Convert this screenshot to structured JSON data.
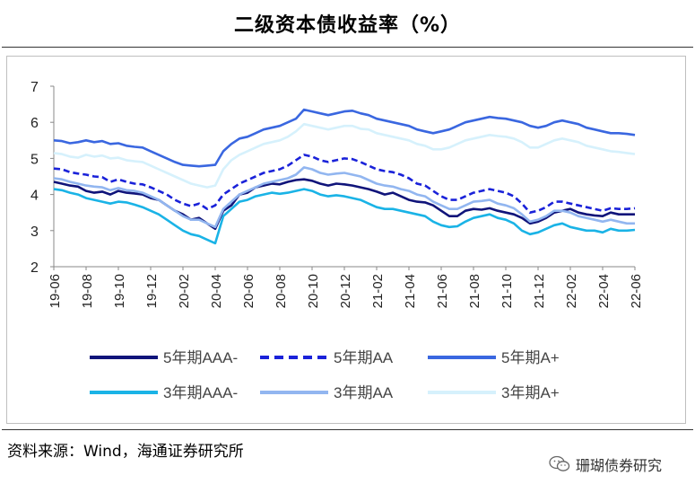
{
  "title": "二级资本债收益率（%）",
  "source": "资料来源：Wind，海通证券研究所",
  "watermark": "珊瑚债券研究",
  "chart_data": {
    "type": "line",
    "title": "二级资本债收益率（%）",
    "xlabel": "",
    "ylabel": "",
    "ylim": [
      2,
      7
    ],
    "yticks": [
      2,
      3,
      4,
      5,
      6,
      7
    ],
    "grid": false,
    "legend_position": "bottom",
    "categories": [
      "19-06",
      "19-08",
      "19-10",
      "19-12",
      "20-02",
      "20-04",
      "20-06",
      "20-08",
      "20-10",
      "20-12",
      "21-02",
      "21-04",
      "21-06",
      "21-08",
      "21-10",
      "21-12",
      "22-02",
      "22-04",
      "22-06"
    ],
    "x": [
      0,
      0.5,
      1,
      1.5,
      2,
      2.5,
      3,
      3.5,
      4,
      4.5,
      5,
      5.5,
      6,
      6.5,
      7,
      7.5,
      8,
      8.5,
      9,
      9.5,
      10,
      10.5,
      11,
      11.5,
      12,
      12.5,
      13,
      13.5,
      14,
      14.5,
      15,
      15.5,
      16,
      16.5,
      17,
      17.5,
      18,
      18.5,
      19,
      19.5,
      20,
      20.5,
      21,
      21.5,
      22,
      22.5,
      23,
      23.5,
      24,
      24.5,
      25,
      25.5,
      26,
      26.5,
      27,
      27.5,
      28,
      28.5,
      29,
      29.5,
      30,
      30.5,
      31,
      31.5,
      32,
      32.5,
      33,
      33.5,
      34,
      34.5,
      35,
      35.5,
      36
    ],
    "series": [
      {
        "name": "5年期AAA-",
        "color": "#10147a",
        "dash": "solid",
        "values": [
          4.35,
          4.3,
          4.25,
          4.22,
          4.1,
          4.05,
          4.08,
          4.0,
          4.1,
          4.05,
          4.03,
          4.0,
          3.9,
          3.85,
          3.7,
          3.55,
          3.45,
          3.3,
          3.35,
          3.2,
          3.05,
          3.55,
          3.7,
          4.0,
          4.05,
          4.2,
          4.25,
          4.3,
          4.28,
          4.35,
          4.4,
          4.42,
          4.38,
          4.3,
          4.25,
          4.3,
          4.28,
          4.25,
          4.2,
          4.15,
          4.08,
          4.0,
          4.05,
          3.95,
          3.85,
          3.8,
          3.78,
          3.7,
          3.55,
          3.4,
          3.4,
          3.55,
          3.6,
          3.58,
          3.62,
          3.55,
          3.5,
          3.45,
          3.35,
          3.2,
          3.25,
          3.35,
          3.5,
          3.55,
          3.6,
          3.5,
          3.45,
          3.42,
          3.4,
          3.5,
          3.45,
          3.45,
          3.45
        ]
      },
      {
        "name": "5年期AA",
        "color": "#1a22d9",
        "dash": "dashed",
        "values": [
          4.72,
          4.7,
          4.62,
          4.58,
          4.55,
          4.5,
          4.48,
          4.35,
          4.42,
          4.35,
          4.3,
          4.28,
          4.2,
          4.1,
          4.0,
          3.85,
          3.75,
          3.68,
          3.75,
          3.6,
          3.7,
          4.0,
          4.15,
          4.3,
          4.4,
          4.5,
          4.6,
          4.65,
          4.7,
          4.8,
          4.95,
          5.1,
          5.05,
          4.95,
          4.9,
          4.95,
          5.0,
          4.98,
          4.9,
          4.8,
          4.7,
          4.65,
          4.62,
          4.55,
          4.45,
          4.3,
          4.25,
          4.1,
          3.95,
          3.85,
          3.85,
          3.95,
          4.05,
          4.1,
          4.15,
          4.1,
          4.05,
          3.95,
          3.75,
          3.5,
          3.55,
          3.65,
          3.8,
          3.8,
          3.75,
          3.7,
          3.65,
          3.6,
          3.55,
          3.62,
          3.6,
          3.6,
          3.62
        ]
      },
      {
        "name": "5年期A+",
        "color": "#3a67e0",
        "dash": "solid",
        "values": [
          5.5,
          5.48,
          5.42,
          5.45,
          5.5,
          5.45,
          5.48,
          5.4,
          5.42,
          5.35,
          5.32,
          5.3,
          5.2,
          5.1,
          5.0,
          4.9,
          4.82,
          4.8,
          4.78,
          4.8,
          4.82,
          5.2,
          5.4,
          5.55,
          5.6,
          5.7,
          5.8,
          5.85,
          5.9,
          6.0,
          6.1,
          6.35,
          6.3,
          6.25,
          6.2,
          6.25,
          6.3,
          6.32,
          6.25,
          6.2,
          6.1,
          6.05,
          6.0,
          5.95,
          5.9,
          5.8,
          5.75,
          5.7,
          5.75,
          5.8,
          5.9,
          6.0,
          6.05,
          6.1,
          6.15,
          6.12,
          6.1,
          6.05,
          6.0,
          5.9,
          5.85,
          5.9,
          6.0,
          6.05,
          6.0,
          5.95,
          5.85,
          5.8,
          5.75,
          5.7,
          5.7,
          5.68,
          5.65
        ]
      },
      {
        "name": "3年期AAA-",
        "color": "#1ab3e6",
        "dash": "solid",
        "values": [
          4.15,
          4.12,
          4.05,
          4.0,
          3.9,
          3.85,
          3.8,
          3.75,
          3.8,
          3.78,
          3.72,
          3.65,
          3.55,
          3.45,
          3.3,
          3.15,
          3.0,
          2.9,
          2.85,
          2.75,
          2.65,
          3.4,
          3.6,
          3.8,
          3.85,
          3.95,
          4.0,
          4.05,
          4.02,
          4.05,
          4.1,
          4.15,
          4.1,
          4.0,
          3.95,
          3.98,
          3.95,
          3.9,
          3.85,
          3.75,
          3.65,
          3.6,
          3.6,
          3.55,
          3.5,
          3.45,
          3.4,
          3.25,
          3.15,
          3.1,
          3.12,
          3.25,
          3.35,
          3.4,
          3.45,
          3.35,
          3.3,
          3.2,
          3.0,
          2.9,
          2.95,
          3.05,
          3.15,
          3.2,
          3.1,
          3.05,
          3.0,
          3.0,
          2.95,
          3.05,
          3.0,
          3.0,
          3.02
        ]
      },
      {
        "name": "3年期AA",
        "color": "#92b6f0",
        "dash": "solid",
        "values": [
          4.45,
          4.42,
          4.35,
          4.3,
          4.25,
          4.22,
          4.2,
          4.12,
          4.18,
          4.12,
          4.1,
          4.05,
          3.95,
          3.85,
          3.7,
          3.55,
          3.4,
          3.3,
          3.3,
          3.2,
          3.1,
          3.6,
          3.8,
          4.0,
          4.1,
          4.2,
          4.3,
          4.35,
          4.4,
          4.45,
          4.55,
          4.75,
          4.7,
          4.6,
          4.55,
          4.58,
          4.6,
          4.55,
          4.5,
          4.4,
          4.3,
          4.25,
          4.22,
          4.15,
          4.1,
          4.0,
          3.95,
          3.8,
          3.7,
          3.6,
          3.6,
          3.7,
          3.8,
          3.82,
          3.85,
          3.75,
          3.7,
          3.62,
          3.45,
          3.25,
          3.3,
          3.4,
          3.55,
          3.55,
          3.5,
          3.4,
          3.35,
          3.3,
          3.25,
          3.3,
          3.25,
          3.2,
          3.2
        ]
      },
      {
        "name": "3年期A+",
        "color": "#d6f1fc",
        "dash": "solid",
        "values": [
          5.15,
          5.12,
          5.05,
          5.02,
          5.1,
          5.05,
          5.08,
          5.0,
          5.02,
          4.95,
          4.92,
          4.9,
          4.8,
          4.7,
          4.6,
          4.5,
          4.4,
          4.3,
          4.25,
          4.2,
          4.25,
          4.7,
          4.95,
          5.1,
          5.2,
          5.3,
          5.4,
          5.45,
          5.5,
          5.6,
          5.75,
          5.95,
          5.9,
          5.85,
          5.8,
          5.85,
          5.9,
          5.9,
          5.82,
          5.8,
          5.7,
          5.65,
          5.6,
          5.55,
          5.5,
          5.4,
          5.35,
          5.25,
          5.25,
          5.3,
          5.4,
          5.5,
          5.55,
          5.6,
          5.65,
          5.62,
          5.6,
          5.55,
          5.45,
          5.3,
          5.3,
          5.4,
          5.5,
          5.55,
          5.5,
          5.45,
          5.35,
          5.3,
          5.25,
          5.2,
          5.18,
          5.15,
          5.12
        ]
      }
    ]
  }
}
